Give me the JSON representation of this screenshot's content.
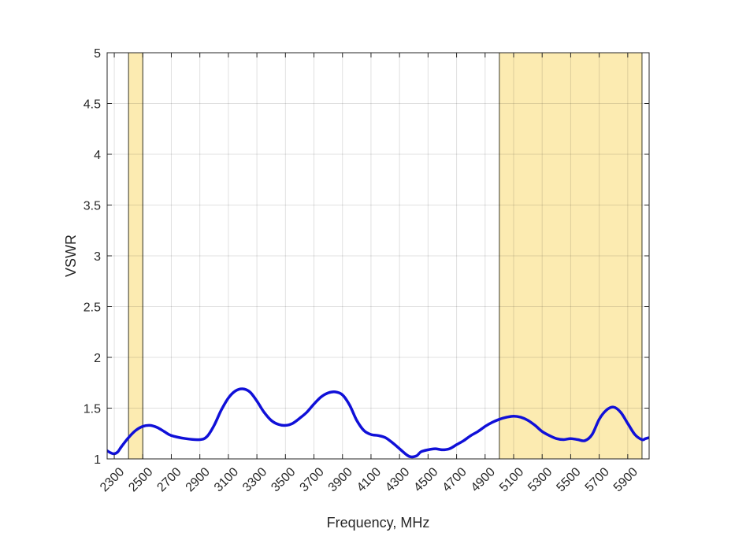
{
  "chart_data": {
    "type": "line",
    "title": "",
    "xlabel": "Frequency, MHz",
    "ylabel": "VSWR",
    "xlim": [
      2250,
      6050
    ],
    "ylim": [
      1,
      5
    ],
    "grid": true,
    "xticks": [
      2300,
      2500,
      2700,
      2900,
      3100,
      3300,
      3500,
      3700,
      3900,
      4100,
      4300,
      4500,
      4700,
      4900,
      5100,
      5300,
      5500,
      5700,
      5900
    ],
    "yticks": [
      1,
      1.5,
      2,
      2.5,
      3,
      3.5,
      4,
      4.5,
      5
    ],
    "ytick_labels": [
      "1",
      "1.5",
      "2",
      "2.5",
      "3",
      "3.5",
      "4",
      "4.5",
      "5"
    ],
    "bands": [
      {
        "x_start": 2400,
        "x_end": 2500,
        "color": "#fce9a9"
      },
      {
        "x_start": 5000,
        "x_end": 6000,
        "color": "#fce9a9"
      }
    ],
    "series": [
      {
        "color": "#1010d8",
        "x": [
          2250,
          2275,
          2300,
          2325,
          2350,
          2400,
          2450,
          2500,
          2550,
          2600,
          2650,
          2700,
          2800,
          2900,
          2950,
          3000,
          3050,
          3100,
          3150,
          3200,
          3250,
          3300,
          3350,
          3400,
          3450,
          3500,
          3550,
          3600,
          3650,
          3700,
          3750,
          3800,
          3850,
          3900,
          3950,
          4000,
          4050,
          4100,
          4150,
          4200,
          4250,
          4300,
          4350,
          4380,
          4420,
          4450,
          4500,
          4550,
          4600,
          4650,
          4700,
          4750,
          4800,
          4850,
          4900,
          4950,
          5000,
          5050,
          5100,
          5150,
          5200,
          5250,
          5300,
          5350,
          5400,
          5450,
          5500,
          5550,
          5600,
          5650,
          5700,
          5750,
          5800,
          5850,
          5900,
          5950,
          6000,
          6025,
          6050
        ],
        "y": [
          1.08,
          1.06,
          1.05,
          1.07,
          1.12,
          1.21,
          1.28,
          1.32,
          1.33,
          1.31,
          1.27,
          1.23,
          1.2,
          1.19,
          1.22,
          1.33,
          1.48,
          1.6,
          1.67,
          1.69,
          1.66,
          1.57,
          1.46,
          1.38,
          1.34,
          1.33,
          1.35,
          1.4,
          1.46,
          1.54,
          1.61,
          1.65,
          1.66,
          1.63,
          1.53,
          1.38,
          1.28,
          1.24,
          1.23,
          1.21,
          1.16,
          1.1,
          1.04,
          1.02,
          1.03,
          1.07,
          1.09,
          1.1,
          1.09,
          1.1,
          1.14,
          1.18,
          1.23,
          1.27,
          1.32,
          1.36,
          1.39,
          1.41,
          1.42,
          1.41,
          1.38,
          1.33,
          1.27,
          1.23,
          1.2,
          1.19,
          1.2,
          1.19,
          1.18,
          1.24,
          1.39,
          1.48,
          1.51,
          1.46,
          1.35,
          1.24,
          1.19,
          1.2,
          1.21
        ]
      }
    ]
  }
}
